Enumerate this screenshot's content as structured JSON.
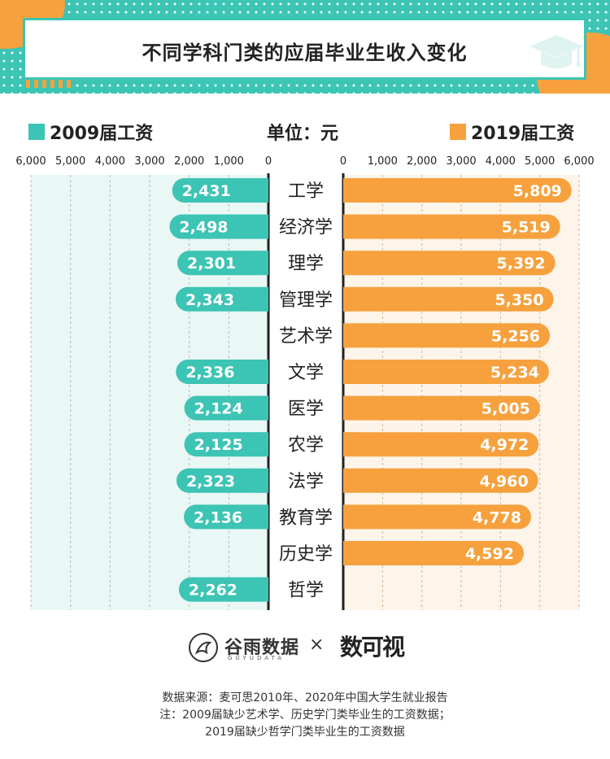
{
  "title": "不同学科门类的应届毕业生收入变化",
  "unit": "单位：元",
  "colors": {
    "left": "#3cc4b4",
    "right": "#f6a13e",
    "left_bg": "#e9f7f5",
    "right_bg": "#fdf4ea",
    "axis": "#222222"
  },
  "legend": {
    "left_label": "2009届工资",
    "right_label": "2019届工资"
  },
  "logos": {
    "guyu": "谷雨数据",
    "guyu_sub": "GUYUDATA",
    "times": "×",
    "shuke": "数可视"
  },
  "footer": {
    "line1": "数据来源：麦可思2010年、2020年中国大学生就业报告",
    "line2": "注：2009届缺少艺术学、历史学门类毕业生的工资数据；",
    "line3": "2019届缺少哲学门类毕业生的工资数据"
  },
  "chart_data": {
    "type": "bar",
    "orientation": "horizontal-butterfly",
    "categories": [
      "工学",
      "经济学",
      "理学",
      "管理学",
      "艺术学",
      "文学",
      "医学",
      "农学",
      "法学",
      "教育学",
      "历史学",
      "哲学"
    ],
    "series": [
      {
        "name": "2009届工资",
        "side": "left",
        "values": [
          2431,
          2498,
          2301,
          2343,
          null,
          2336,
          2124,
          2125,
          2323,
          2136,
          null,
          2262
        ],
        "labels": [
          "2,431",
          "2,498",
          "2,301",
          "2,343",
          "",
          "2,336",
          "2,124",
          "2,125",
          "2,323",
          "2,136",
          "",
          "2,262"
        ]
      },
      {
        "name": "2019届工资",
        "side": "right",
        "values": [
          5809,
          5519,
          5392,
          5350,
          5256,
          5234,
          5005,
          4972,
          4960,
          4778,
          4592,
          null
        ],
        "labels": [
          "5,809",
          "5,519",
          "5,392",
          "5,350",
          "5,256",
          "5,234",
          "5,005",
          "4,972",
          "4,960",
          "4,778",
          "4,592",
          ""
        ]
      }
    ],
    "left_ticks": [
      "6,000",
      "5,000",
      "4,000",
      "3,000",
      "2,000",
      "1,000",
      "0"
    ],
    "right_ticks": [
      "0",
      "1,000",
      "2,000",
      "3,000",
      "4,000",
      "5,000",
      "6,000"
    ],
    "xlim": [
      0,
      6000
    ],
    "grid": true
  }
}
